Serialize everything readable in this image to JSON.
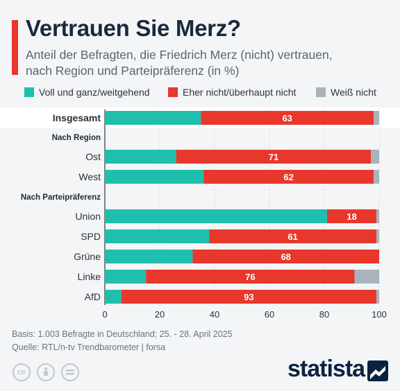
{
  "header": {
    "title": "Vertrauen Sie Merz?",
    "subtitle_line1": "Anteil der Befragten, die Friedrich Merz (nicht) vertrauen,",
    "subtitle_line2": "nach Region und Parteipräferenz (in %)"
  },
  "legend": [
    {
      "label": "Voll und ganz/weitgehend",
      "color": "#1fbfad"
    },
    {
      "label": "Eher nicht/überhaupt nicht",
      "color": "#e8372b"
    },
    {
      "label": "Weiß nicht",
      "color": "#a9b3bc"
    }
  ],
  "chart_data": {
    "type": "bar",
    "orientation": "horizontal",
    "stacked": true,
    "categories": [
      "Insgesamt",
      "Ost",
      "West",
      "Union",
      "SPD",
      "Grüne",
      "Linke",
      "AfD"
    ],
    "groups": [
      {
        "label": "Nach Region",
        "before": "Ost"
      },
      {
        "label": "Nach Parteipräferenz",
        "before": "Union"
      }
    ],
    "series": [
      {
        "name": "Voll und ganz/weitgehend",
        "color": "#1fbfad",
        "values": [
          35,
          26,
          36,
          81,
          38,
          32,
          15,
          6
        ]
      },
      {
        "name": "Eher nicht/überhaupt nicht",
        "color": "#e8372b",
        "values": [
          63,
          71,
          62,
          18,
          61,
          68,
          76,
          93
        ]
      },
      {
        "name": "Weiß nicht",
        "color": "#a9b3bc",
        "values": [
          2,
          3,
          2,
          1,
          1,
          0,
          9,
          1
        ]
      }
    ],
    "data_labels": [
      63,
      71,
      62,
      18,
      61,
      68,
      76,
      93
    ],
    "xlim": [
      0,
      100
    ],
    "xticks": [
      0,
      20,
      40,
      60,
      80,
      100
    ],
    "grid": true
  },
  "footer": {
    "basis": "Basis: 1.003 Befragte in Deutschland; 25. - 28. April 2025",
    "source": "Quelle: RTL/n-tv Trendbarometer | forsa"
  },
  "branding": {
    "logo": "statista"
  }
}
